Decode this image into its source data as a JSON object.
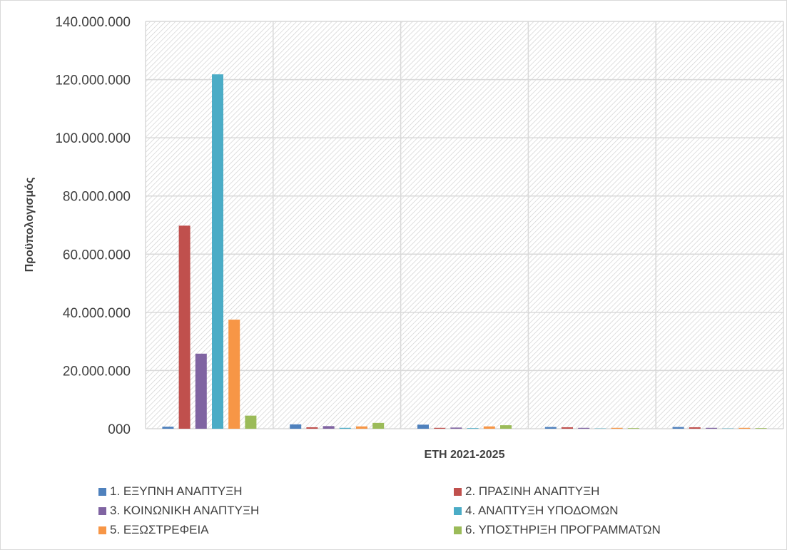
{
  "chart_data": {
    "type": "bar",
    "title": "",
    "xlabel": "ΕΤΗ 2021-2025",
    "ylabel": "Προϋπολογισμός",
    "ylim": [
      0,
      140000000
    ],
    "yticks": [
      {
        "value": 0,
        "label": "000"
      },
      {
        "value": 20000000,
        "label": "20.000.000"
      },
      {
        "value": 40000000,
        "label": "40.000.000"
      },
      {
        "value": 60000000,
        "label": "60.000.000"
      },
      {
        "value": 80000000,
        "label": "80.000.000"
      },
      {
        "value": 100000000,
        "label": "100.000.000"
      },
      {
        "value": 120000000,
        "label": "120.000.000"
      },
      {
        "value": 140000000,
        "label": "140.000.000"
      }
    ],
    "categories": [
      "",
      "",
      "",
      "",
      ""
    ],
    "grid": true,
    "legend_position": "bottom",
    "series": [
      {
        "name": "1. ΕΞΥΠΝΗ ΑΝΑΠΤΥΞΗ",
        "color": "#4f81bd",
        "values": [
          700000,
          1500000,
          1400000,
          600000,
          600000
        ]
      },
      {
        "name": "2. ΠΡΑΣΙΝΗ ΑΝΑΠΤΥΞΗ",
        "color": "#c0504d",
        "values": [
          69800000,
          500000,
          300000,
          500000,
          500000
        ]
      },
      {
        "name": "3. ΚΟΙΝΩΝΙΚΗ ΑΝΑΠΤΥΞΗ",
        "color": "#8064a2",
        "values": [
          25800000,
          900000,
          400000,
          300000,
          300000
        ]
      },
      {
        "name": "4. ΑΝΑΠΤΥΞΗ ΥΠΟΔΟΜΩΝ",
        "color": "#4bacc6",
        "values": [
          121800000,
          300000,
          200000,
          100000,
          100000
        ]
      },
      {
        "name": "5. ΕΞΩΣΤΡΕΦΕΙΑ",
        "color": "#f79646",
        "values": [
          37500000,
          800000,
          800000,
          300000,
          300000
        ]
      },
      {
        "name": "6. ΥΠΟΣΤΗΡΙΞΗ ΠΡΟΓΡΑΜΜΑΤΩΝ",
        "color": "#9bbb59",
        "values": [
          4500000,
          2000000,
          1200000,
          200000,
          200000
        ]
      }
    ]
  }
}
